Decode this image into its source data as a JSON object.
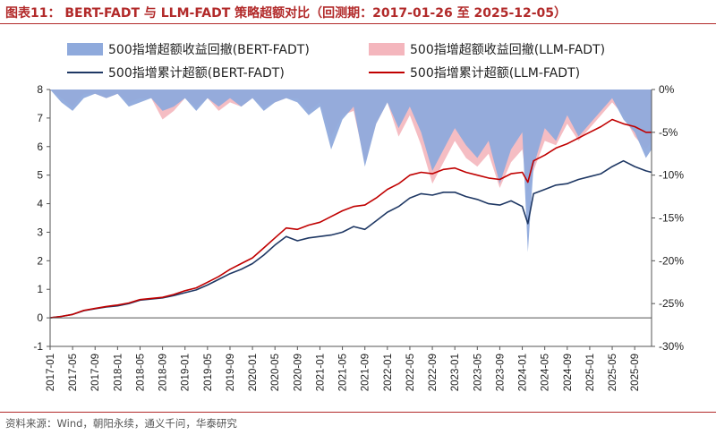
{
  "header": {
    "title": "图表11： BERT-FADT 与 LLM-FADT 策略超额对比（回测期：2017-01-26 至 2025-12-05）"
  },
  "footer": {
    "source": "资料来源：Wind，朝阳永续，通义千问，华泰研究"
  },
  "colors": {
    "title": "#b22a2a",
    "bert_line": "#1f3864",
    "llm_line": "#c00000",
    "bert_drawdown": "#8faadc",
    "llm_drawdown": "#f4b6bd"
  },
  "chart_data": {
    "type": "line",
    "title": "",
    "xlabel": "",
    "ylabel": "",
    "ylim": [
      -1,
      8
    ],
    "y2lim": [
      -30,
      0
    ],
    "y_ticks": [
      "-1",
      "0",
      "1",
      "2",
      "3",
      "4",
      "5",
      "6",
      "7",
      "8"
    ],
    "y2_ticks": [
      "0%",
      "-5%",
      "-10%",
      "-15%",
      "-20%",
      "-25%",
      "-30%"
    ],
    "x_ticks": [
      "2017-01",
      "2017-05",
      "2017-09",
      "2018-01",
      "2018-05",
      "2018-09",
      "2019-01",
      "2019-05",
      "2019-09",
      "2020-01",
      "2020-05",
      "2020-09",
      "2021-01",
      "2021-05",
      "2021-09",
      "2022-01",
      "2022-05",
      "2022-09",
      "2023-01",
      "2023-05",
      "2023-09",
      "2024-01",
      "2024-05",
      "2024-09",
      "2025-01",
      "2025-05",
      "2025-09"
    ],
    "grid": false,
    "legend_position": "top",
    "series": [
      {
        "name": "500指增超额收益回撤(BERT-FADT)",
        "kind": "area",
        "axis": "right",
        "x": [
          "2017-01",
          "2017-03",
          "2017-05",
          "2017-07",
          "2017-09",
          "2017-11",
          "2018-01",
          "2018-03",
          "2018-05",
          "2018-07",
          "2018-09",
          "2018-11",
          "2019-01",
          "2019-03",
          "2019-05",
          "2019-07",
          "2019-09",
          "2019-11",
          "2020-01",
          "2020-03",
          "2020-05",
          "2020-07",
          "2020-09",
          "2020-11",
          "2021-01",
          "2021-03",
          "2021-05",
          "2021-07",
          "2021-09",
          "2021-11",
          "2022-01",
          "2022-03",
          "2022-05",
          "2022-07",
          "2022-09",
          "2022-11",
          "2023-01",
          "2023-03",
          "2023-05",
          "2023-07",
          "2023-09",
          "2023-11",
          "2024-01",
          "2024-02",
          "2024-03",
          "2024-05",
          "2024-07",
          "2024-09",
          "2024-11",
          "2025-01",
          "2025-03",
          "2025-05",
          "2025-07",
          "2025-09",
          "2025-11",
          "2025-12"
        ],
        "values": [
          0,
          -1.5,
          -2.5,
          -1.0,
          -0.5,
          -1.0,
          -0.5,
          -2.0,
          -1.5,
          -1.0,
          -2.5,
          -2.0,
          -1.0,
          -2.5,
          -1.0,
          -2.0,
          -1.0,
          -2.0,
          -1.0,
          -2.5,
          -1.5,
          -1.0,
          -1.5,
          -3.0,
          -2.0,
          -7.0,
          -3.5,
          -2.0,
          -9.0,
          -4.0,
          -1.5,
          -4.5,
          -2.0,
          -5.0,
          -9.5,
          -7.0,
          -4.5,
          -6.5,
          -8.0,
          -6.0,
          -11.0,
          -7.0,
          -5.0,
          -19.0,
          -9.0,
          -4.5,
          -6.0,
          -3.0,
          -5.5,
          -4.0,
          -2.5,
          -1.0,
          -3.5,
          -5.0,
          -8.0,
          -7.0
        ]
      },
      {
        "name": "500指增超额收益回撤(LLM-FADT)",
        "kind": "area",
        "axis": "right",
        "x": [
          "2017-01",
          "2017-03",
          "2017-05",
          "2017-07",
          "2017-09",
          "2017-11",
          "2018-01",
          "2018-03",
          "2018-05",
          "2018-07",
          "2018-09",
          "2018-11",
          "2019-01",
          "2019-03",
          "2019-05",
          "2019-07",
          "2019-09",
          "2019-11",
          "2020-01",
          "2020-03",
          "2020-05",
          "2020-07",
          "2020-09",
          "2020-11",
          "2021-01",
          "2021-03",
          "2021-05",
          "2021-07",
          "2021-09",
          "2021-11",
          "2022-01",
          "2022-03",
          "2022-05",
          "2022-07",
          "2022-09",
          "2022-11",
          "2023-01",
          "2023-03",
          "2023-05",
          "2023-07",
          "2023-09",
          "2023-11",
          "2024-01",
          "2024-02",
          "2024-03",
          "2024-05",
          "2024-07",
          "2024-09",
          "2024-11",
          "2025-01",
          "2025-03",
          "2025-05",
          "2025-07",
          "2025-09",
          "2025-11",
          "2025-12"
        ],
        "values": [
          0,
          -1.0,
          -2.0,
          -0.5,
          -0.5,
          -1.0,
          -0.5,
          -1.5,
          -1.0,
          -1.0,
          -3.5,
          -2.5,
          -1.0,
          -2.0,
          -1.0,
          -2.5,
          -1.5,
          -2.0,
          -1.0,
          -2.0,
          -1.5,
          -1.0,
          -1.0,
          -2.5,
          -1.5,
          -5.5,
          -3.0,
          -2.5,
          -8.5,
          -4.0,
          -1.5,
          -5.5,
          -3.0,
          -6.5,
          -11.0,
          -8.5,
          -6.0,
          -8.0,
          -9.0,
          -7.5,
          -11.5,
          -8.5,
          -7.0,
          -12.0,
          -9.5,
          -6.0,
          -6.5,
          -4.0,
          -6.0,
          -4.5,
          -3.0,
          -1.5,
          -3.0,
          -5.5,
          -7.0,
          -6.0
        ]
      },
      {
        "name": "500指增累计超额(BERT-FADT)",
        "kind": "line",
        "axis": "left",
        "x": [
          "2017-01",
          "2017-03",
          "2017-05",
          "2017-07",
          "2017-09",
          "2017-11",
          "2018-01",
          "2018-03",
          "2018-05",
          "2018-07",
          "2018-09",
          "2018-11",
          "2019-01",
          "2019-03",
          "2019-05",
          "2019-07",
          "2019-09",
          "2019-11",
          "2020-01",
          "2020-03",
          "2020-05",
          "2020-07",
          "2020-09",
          "2020-11",
          "2021-01",
          "2021-03",
          "2021-05",
          "2021-07",
          "2021-09",
          "2021-11",
          "2022-01",
          "2022-03",
          "2022-05",
          "2022-07",
          "2022-09",
          "2022-11",
          "2023-01",
          "2023-03",
          "2023-05",
          "2023-07",
          "2023-09",
          "2023-11",
          "2024-01",
          "2024-02",
          "2024-03",
          "2024-05",
          "2024-07",
          "2024-09",
          "2024-11",
          "2025-01",
          "2025-03",
          "2025-05",
          "2025-07",
          "2025-09",
          "2025-11",
          "2025-12"
        ],
        "values": [
          0,
          0.05,
          0.12,
          0.25,
          0.32,
          0.38,
          0.42,
          0.5,
          0.62,
          0.66,
          0.7,
          0.78,
          0.88,
          0.98,
          1.15,
          1.35,
          1.55,
          1.7,
          1.9,
          2.2,
          2.55,
          2.85,
          2.7,
          2.8,
          2.85,
          2.9,
          3.0,
          3.2,
          3.1,
          3.4,
          3.7,
          3.9,
          4.2,
          4.35,
          4.3,
          4.4,
          4.4,
          4.25,
          4.15,
          4.0,
          3.95,
          4.1,
          3.9,
          3.3,
          4.35,
          4.5,
          4.65,
          4.7,
          4.85,
          4.95,
          5.05,
          5.3,
          5.5,
          5.3,
          5.15,
          5.1
        ]
      },
      {
        "name": "500指增累计超额(LLM-FADT)",
        "kind": "line",
        "axis": "left",
        "x": [
          "2017-01",
          "2017-03",
          "2017-05",
          "2017-07",
          "2017-09",
          "2017-11",
          "2018-01",
          "2018-03",
          "2018-05",
          "2018-07",
          "2018-09",
          "2018-11",
          "2019-01",
          "2019-03",
          "2019-05",
          "2019-07",
          "2019-09",
          "2019-11",
          "2020-01",
          "2020-03",
          "2020-05",
          "2020-07",
          "2020-09",
          "2020-11",
          "2021-01",
          "2021-03",
          "2021-05",
          "2021-07",
          "2021-09",
          "2021-11",
          "2022-01",
          "2022-03",
          "2022-05",
          "2022-07",
          "2022-09",
          "2022-11",
          "2023-01",
          "2023-03",
          "2023-05",
          "2023-07",
          "2023-09",
          "2023-11",
          "2024-01",
          "2024-02",
          "2024-03",
          "2024-05",
          "2024-07",
          "2024-09",
          "2024-11",
          "2025-01",
          "2025-03",
          "2025-05",
          "2025-07",
          "2025-09",
          "2025-11",
          "2025-12"
        ],
        "values": [
          0,
          0.05,
          0.12,
          0.26,
          0.33,
          0.4,
          0.45,
          0.52,
          0.64,
          0.68,
          0.72,
          0.82,
          0.95,
          1.05,
          1.25,
          1.45,
          1.7,
          1.9,
          2.1,
          2.45,
          2.8,
          3.15,
          3.1,
          3.25,
          3.35,
          3.55,
          3.75,
          3.9,
          3.95,
          4.2,
          4.5,
          4.7,
          5.0,
          5.1,
          5.05,
          5.2,
          5.25,
          5.1,
          5.0,
          4.9,
          4.85,
          5.05,
          5.1,
          4.75,
          5.5,
          5.7,
          5.95,
          6.1,
          6.3,
          6.5,
          6.7,
          6.95,
          6.8,
          6.7,
          6.5,
          6.5
        ]
      }
    ]
  }
}
